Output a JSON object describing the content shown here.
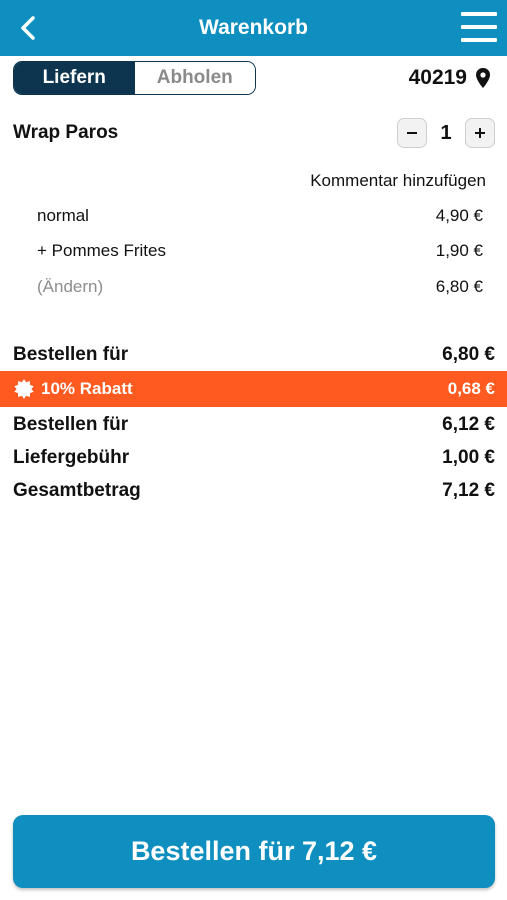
{
  "header": {
    "title": "Warenkorb",
    "back_icon": "chevron-left-icon",
    "menu_icon": "hamburger-menu-icon"
  },
  "delivery_toggle": {
    "options": [
      "Liefern",
      "Abholen"
    ],
    "selected": "Liefern"
  },
  "location": {
    "postcode": "40219",
    "icon": "map-pin-icon"
  },
  "cart_item": {
    "name": "Wrap Paros",
    "quantity": "1",
    "comment_link": "Kommentar hinzufügen",
    "options": [
      {
        "label": "normal",
        "price": "4,90 €"
      },
      {
        "label": "+ Pommes Frites",
        "price": "1,90 €"
      },
      {
        "label": "(Ändern)",
        "price": "6,80 €"
      }
    ]
  },
  "summary": {
    "subtotal": {
      "label": "Bestellen für",
      "value": "6,80 €"
    },
    "discount": {
      "label": "10% Rabatt",
      "value": "0,68 €",
      "color": "#ff5a1f",
      "icon": "discount-badge-icon"
    },
    "after_discount": {
      "label": "Bestellen für",
      "value": "6,12 €"
    },
    "delivery_fee": {
      "label": "Liefergebühr",
      "value": "1,00 €"
    },
    "total": {
      "label": "Gesamtbetrag",
      "value": "7,12 €"
    }
  },
  "order_button": {
    "label": "Bestellen für 7,12 €"
  },
  "colors": {
    "primary": "#0e8fc0",
    "dark": "#0d3550",
    "accent": "#ff5a1f"
  }
}
